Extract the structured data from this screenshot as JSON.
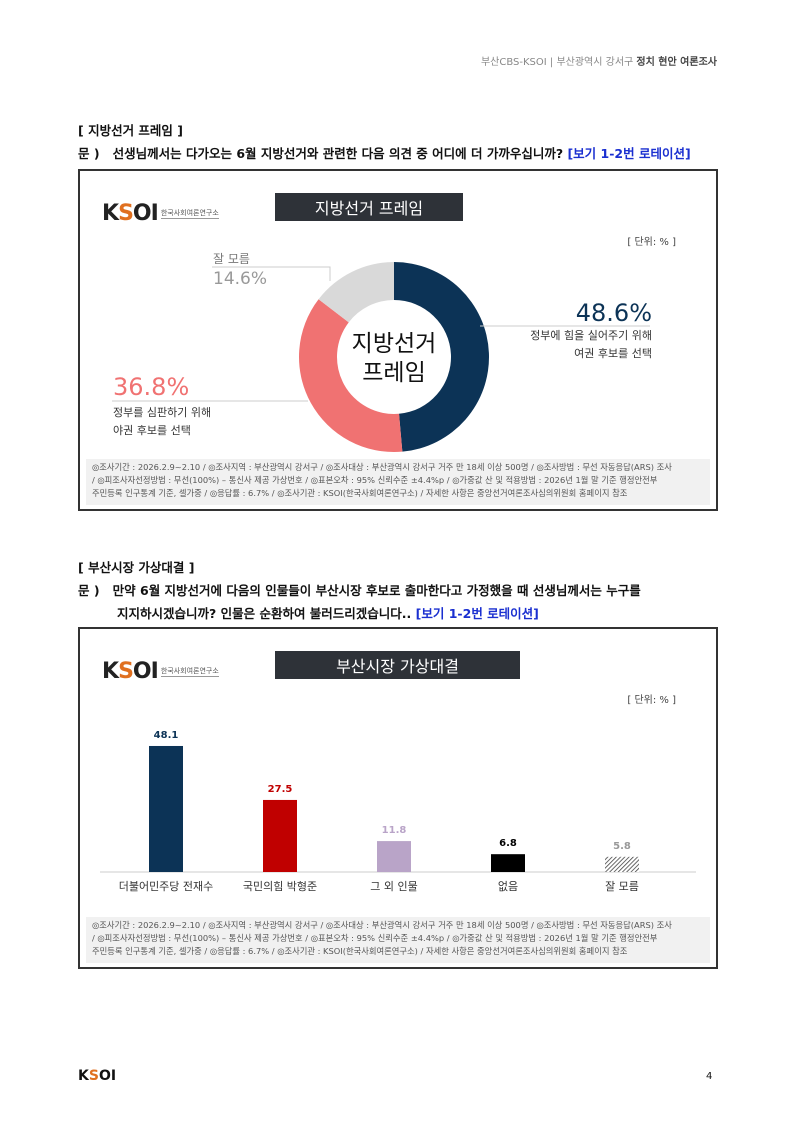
{
  "header": {
    "left": "부산CBS-KSOI",
    "sep": " | ",
    "region": "부산광역시 강서구",
    "title": "정치 현안 여론조사"
  },
  "section1": {
    "title": "[ 지방선거 프레임 ]",
    "question_prefix": "문 )",
    "question": "선생님께서는 다가오는 6월 지방선거와 관련한 다음 의견 중 어디에 더 가까우십니까?",
    "note": "[보기 1-2번 로테이션]"
  },
  "section2": {
    "title": "[ 부산시장 가상대결 ]",
    "question_prefix": "문 )",
    "question_line1": "만약 6월 지방선거에 다음의 인물들이 부산시장 후보로 출마한다고 가정했을 때 선생님께서는 누구를",
    "question_line2": "지지하시겠습니까? 인물은 순환하여 불러드리겠습니다..",
    "note": "[보기 1-2번 로테이션]"
  },
  "logo": {
    "text": "KSOI",
    "subtitle": "한국사회여론연구소"
  },
  "footnote": {
    "l1": "◎조사기간 : 2026.2.9~2.10 / ◎조사지역 : 부산광역시 강서구 / ◎조사대상 : 부산광역시 강서구 거주 만 18세 이상 500명 / ◎조사방법 : 무선 자동응답(ARS) 조사",
    "l2": "/ ◎피조사자선정방법 : 무선(100%) – 통신사 제공 가상번호 / ◎표본오차 : 95% 신뢰수준 ±4.4%p / ◎가중값 산 및 적용방법 : 2026년 1월 말 기준 행정안전부",
    "l3": "주민등록 인구통계 기준, 셀가중 / ◎응답률 : 6.7% / ◎조사기관 : KSOI(한국사회여론연구소) / 자세한 사항은 중앙선거여론조사심의위원회 홈페이지 참조"
  },
  "page_number": "4",
  "chart_data": [
    {
      "type": "pie",
      "title": "지방선거 프레임",
      "center_label": [
        "지방선거",
        "프레임"
      ],
      "unit": "[ 단위: % ]",
      "slices": [
        {
          "label": [
            "정부에 힘을 실어주기 위해",
            "여권 후보를 선택"
          ],
          "value": 48.6,
          "display": "48.6%",
          "color": "#0c3356"
        },
        {
          "label": [
            "정부를 심판하기 위해",
            "야권 후보를 선택"
          ],
          "value": 36.8,
          "display": "36.8%",
          "color": "#f07272"
        },
        {
          "label": [
            "잘 모름"
          ],
          "value": 14.6,
          "display": "14.6%",
          "color": "#d9d9d9"
        }
      ]
    },
    {
      "type": "bar",
      "title": "부산시장 가상대결",
      "unit": "[ 단위: % ]",
      "ylim": [
        0,
        55
      ],
      "categories": [
        "더불어민주당 전재수",
        "국민의힘 박형준",
        "그 외 인물",
        "없음",
        "잘 모름"
      ],
      "values": [
        48.1,
        27.5,
        11.8,
        6.8,
        5.8
      ],
      "labels": [
        "48.1",
        "27.5",
        "11.8",
        "6.8",
        "5.8"
      ],
      "colors": [
        "#0c3356",
        "#c00000",
        "#b9a4c8",
        "#000000",
        "hatch"
      ],
      "label_colors": [
        "#0c3356",
        "#c00000",
        "#b9a4c8",
        "#000000",
        "#999999"
      ]
    }
  ]
}
